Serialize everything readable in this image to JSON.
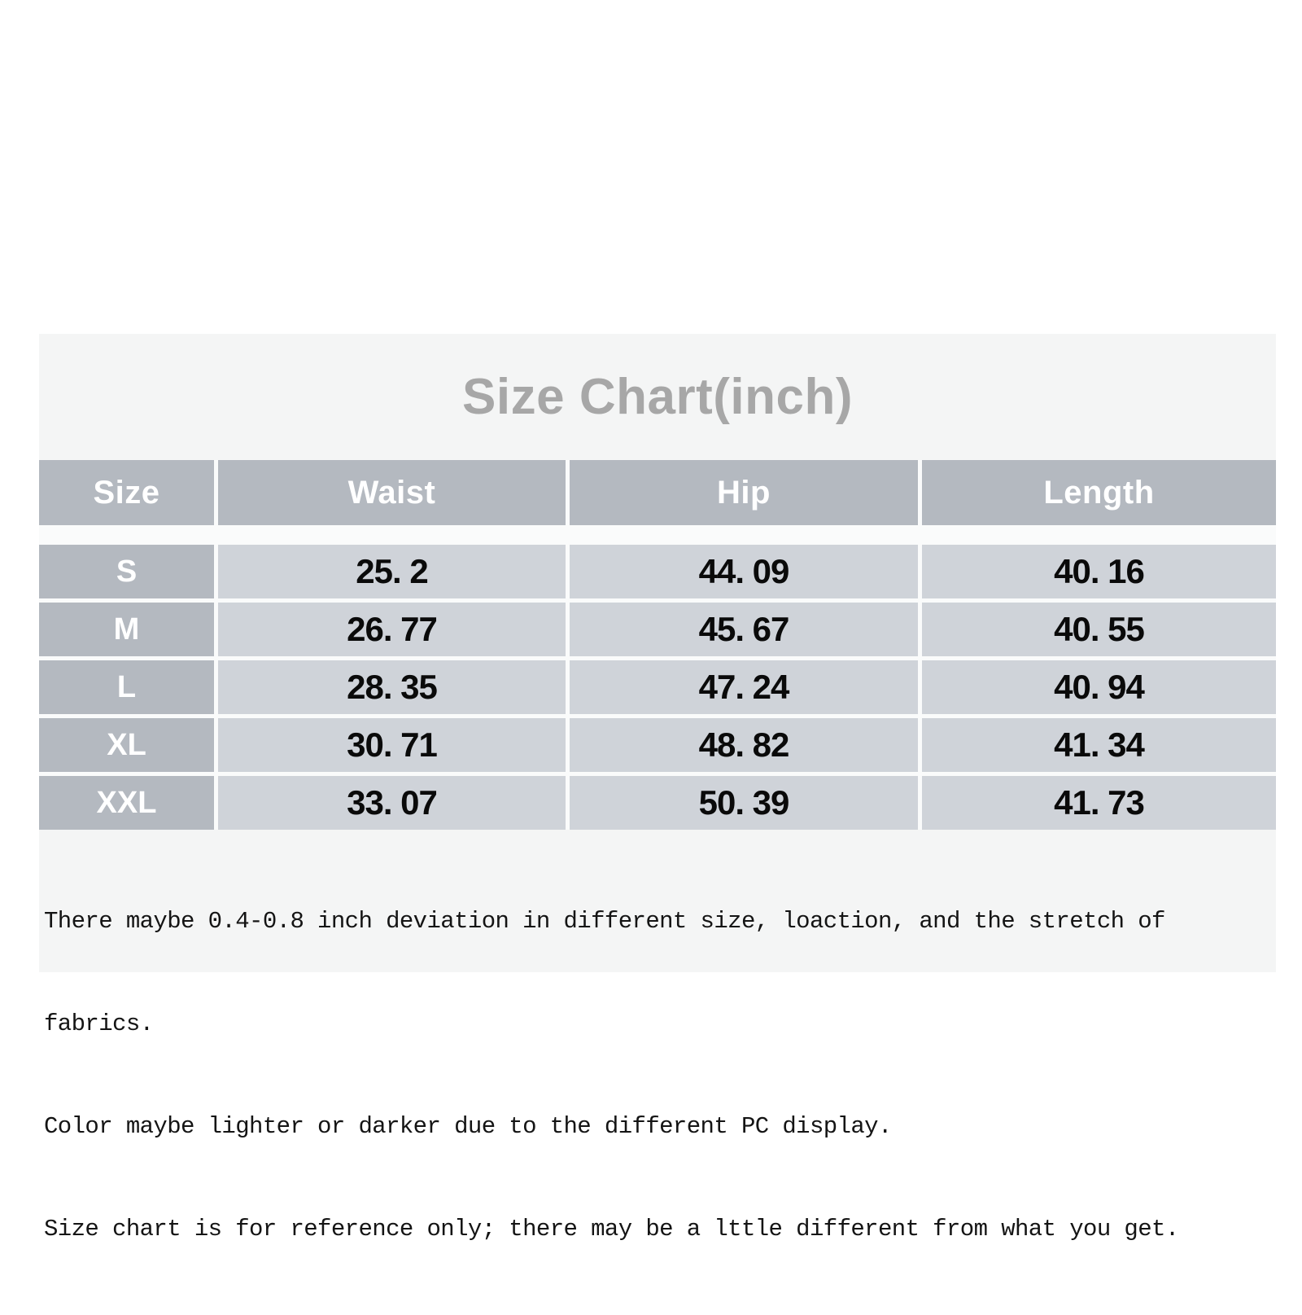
{
  "title": "Size Chart(inch)",
  "table": {
    "columns": [
      "Size",
      "Waist",
      "Hip",
      "Length"
    ],
    "rows": [
      [
        "S",
        "25. 2",
        "44. 09",
        "40. 16"
      ],
      [
        "M",
        "26. 77",
        "45. 67",
        "40. 55"
      ],
      [
        "L",
        "28. 35",
        "47. 24",
        "40. 94"
      ],
      [
        "XL",
        "30. 71",
        "48. 82",
        "41. 34"
      ],
      [
        "XXL",
        "33. 07",
        "50. 39",
        "41. 73"
      ]
    ]
  },
  "notes": {
    "lines": [
      "There maybe 0.4-0.8 inch deviation in different size, loaction, and the stretch of",
      "fabrics.",
      "Color maybe lighter or darker due to the different PC display.",
      "Size chart is for reference only; there may be a lttle different from what you get."
    ]
  },
  "colors": {
    "page_background": "#ffffff",
    "panel_background": "#f4f5f5",
    "title_text": "#a7a7a7",
    "header_cell_background": "#b4b9c0",
    "header_cell_text": "#ffffff",
    "value_cell_background": "#cfd3d9",
    "value_cell_text": "#0a0a0a",
    "divider": "#fafbfb",
    "note_text": "#141414"
  },
  "chart_data": {
    "type": "table",
    "title": "Size Chart(inch)",
    "unit": "inch",
    "columns": [
      "Size",
      "Waist",
      "Hip",
      "Length"
    ],
    "rows": [
      [
        "S",
        25.2,
        44.09,
        40.16
      ],
      [
        "M",
        26.77,
        45.67,
        40.55
      ],
      [
        "L",
        28.35,
        47.24,
        40.94
      ],
      [
        "XL",
        30.71,
        48.82,
        41.34
      ],
      [
        "XXL",
        33.07,
        50.39,
        41.73
      ]
    ]
  }
}
